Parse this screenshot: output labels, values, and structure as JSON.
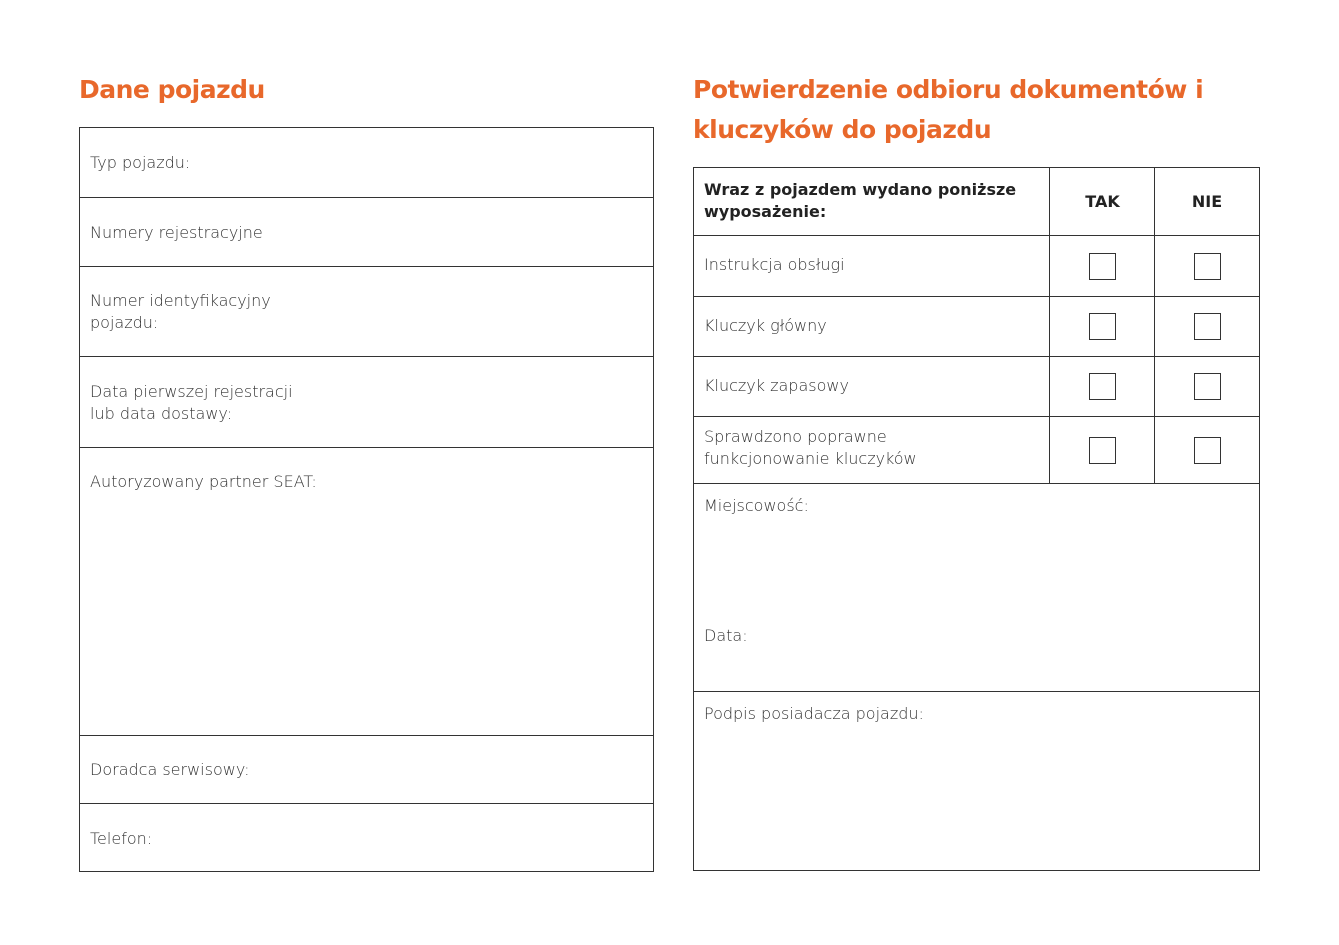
{
  "left": {
    "title": "Dane pojazdu",
    "rows": [
      "Typ pojazdu:",
      "Numery rejestracyjne",
      "Numer identyfikacyjny\npojazdu:",
      "Data pierwszej rejestracji\nlub data dostawy:",
      "Autoryzowany partner SEAT:",
      "Doradca serwisowy:",
      "Telefon:"
    ]
  },
  "right": {
    "title": "Potwierdzenie odbioru dokumentów i kluczyków do pojazdu",
    "header": {
      "item": "Wraz z pojazdem wydano poniższe wyposażenie:",
      "yes": "TAK",
      "no": "NIE"
    },
    "items": [
      {
        "label": "Instrukcja obsługi",
        "yes": false,
        "no": false
      },
      {
        "label": "Kluczyk główny",
        "yes": false,
        "no": false
      },
      {
        "label": "Kluczyk zapasowy",
        "yes": false,
        "no": false
      },
      {
        "label": "Sprawdzono poprawne\nfunkcjonowanie kluczyków",
        "yes": false,
        "no": false
      }
    ],
    "place": "Miejscowość:",
    "date": "Data:",
    "signature": "Podpis posiadacza pojazdu:"
  },
  "colors": {
    "accent": "#e8682b"
  }
}
